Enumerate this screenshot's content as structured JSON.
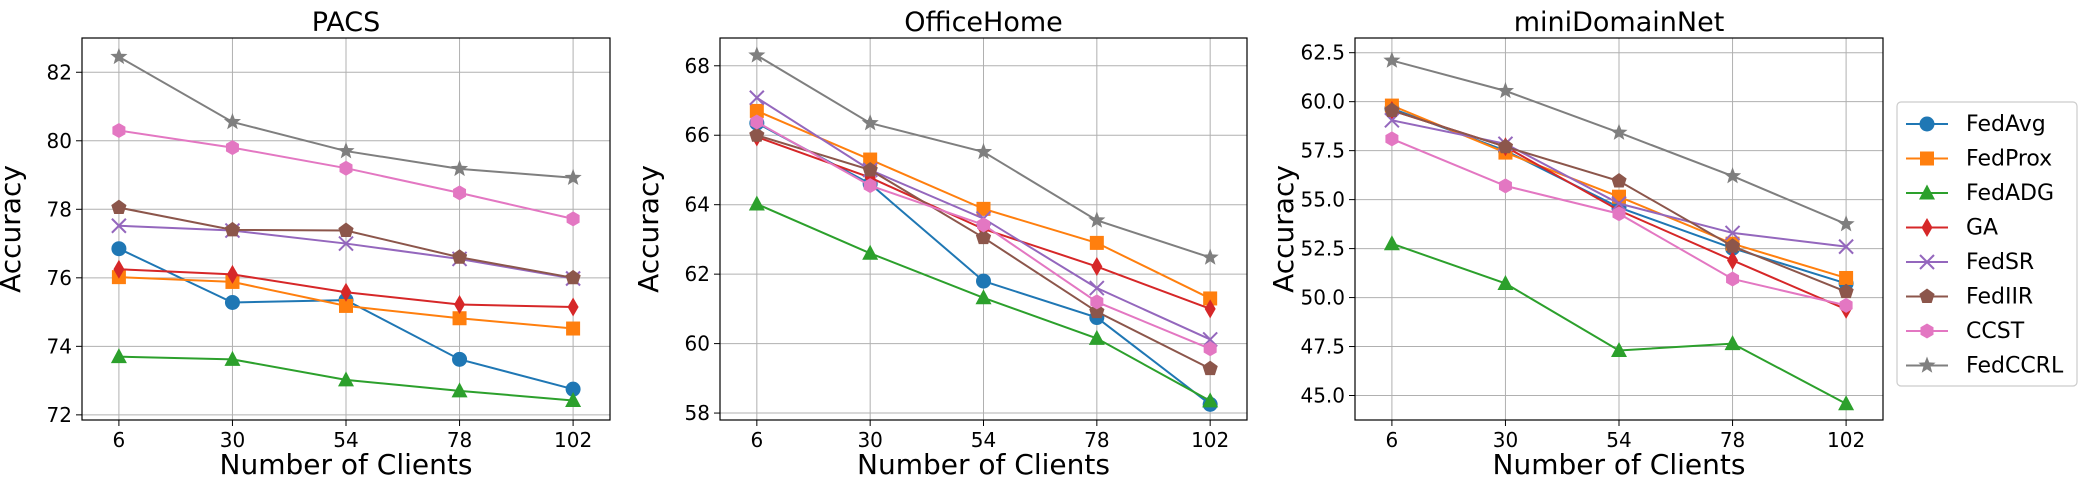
{
  "legend": {
    "placement": "right",
    "entries": [
      {
        "name": "FedAvg",
        "color": "#1f77b4",
        "marker": "circle"
      },
      {
        "name": "FedProx",
        "color": "#ff7f0e",
        "marker": "square"
      },
      {
        "name": "FedADG",
        "color": "#2ca02c",
        "marker": "triangle-up"
      },
      {
        "name": "GA",
        "color": "#d62728",
        "marker": "thin-diamond"
      },
      {
        "name": "FedSR",
        "color": "#9467bd",
        "marker": "x"
      },
      {
        "name": "FedIIR",
        "color": "#8c564b",
        "marker": "pentagon"
      },
      {
        "name": "CCST",
        "color": "#e377c2",
        "marker": "hexagon"
      },
      {
        "name": "FedCCRL",
        "color": "#7f7f7f",
        "marker": "star"
      }
    ]
  },
  "chart_data": [
    {
      "type": "line",
      "title": "PACS",
      "xlabel": "Number of Clients",
      "ylabel": "Accuracy",
      "grid": true,
      "x": [
        6,
        30,
        54,
        78,
        102
      ],
      "xticks": [
        "6",
        "30",
        "54",
        "78",
        "102"
      ],
      "xlim": [
        -1.8,
        109.8
      ],
      "ylim": [
        71.85,
        83.0
      ],
      "yticks": [
        "72",
        "74",
        "76",
        "78",
        "80",
        "82"
      ],
      "series": [
        {
          "name": "FedAvg",
          "values": [
            76.85,
            75.28,
            75.35,
            73.62,
            72.75
          ]
        },
        {
          "name": "FedProx",
          "values": [
            76.02,
            75.88,
            75.18,
            74.82,
            74.52
          ]
        },
        {
          "name": "FedADG",
          "values": [
            73.7,
            73.62,
            73.02,
            72.7,
            72.42
          ]
        },
        {
          "name": "GA",
          "values": [
            76.25,
            76.1,
            75.58,
            75.22,
            75.15
          ]
        },
        {
          "name": "FedSR",
          "values": [
            77.52,
            77.38,
            77.0,
            76.55,
            75.98
          ]
        },
        {
          "name": "FedIIR",
          "values": [
            78.05,
            77.4,
            77.38,
            76.6,
            76.0
          ]
        },
        {
          "name": "CCST",
          "values": [
            80.3,
            79.8,
            79.2,
            78.48,
            77.72
          ]
        },
        {
          "name": "FedCCRL",
          "values": [
            82.45,
            80.55,
            79.7,
            79.18,
            78.92
          ]
        }
      ]
    },
    {
      "type": "line",
      "title": "OfficeHome",
      "xlabel": "Number of Clients",
      "ylabel": "Accuracy",
      "grid": true,
      "x": [
        6,
        30,
        54,
        78,
        102
      ],
      "xticks": [
        "6",
        "30",
        "54",
        "78",
        "102"
      ],
      "xlim": [
        -1.8,
        109.8
      ],
      "ylim": [
        57.8,
        68.8
      ],
      "yticks": [
        "58",
        "60",
        "62",
        "64",
        "66",
        "68"
      ],
      "series": [
        {
          "name": "FedAvg",
          "values": [
            66.35,
            64.6,
            61.8,
            60.75,
            58.25
          ]
        },
        {
          "name": "FedProx",
          "values": [
            66.7,
            65.3,
            63.88,
            62.9,
            61.3
          ]
        },
        {
          "name": "FedADG",
          "values": [
            64.02,
            62.6,
            61.32,
            60.15,
            58.35
          ]
        },
        {
          "name": "GA",
          "values": [
            65.95,
            64.78,
            63.3,
            62.22,
            61.0
          ]
        },
        {
          "name": "FedSR",
          "values": [
            67.08,
            65.0,
            63.6,
            61.6,
            60.12
          ]
        },
        {
          "name": "FedIIR",
          "values": [
            66.0,
            65.0,
            63.05,
            60.92,
            59.28
          ]
        },
        {
          "name": "CCST",
          "values": [
            66.38,
            64.55,
            63.42,
            61.2,
            59.85
          ]
        },
        {
          "name": "FedCCRL",
          "values": [
            68.3,
            66.35,
            65.52,
            63.55,
            62.48
          ]
        }
      ]
    },
    {
      "type": "line",
      "title": "miniDomainNet",
      "xlabel": "Number of Clients",
      "ylabel": "Accuracy",
      "grid": true,
      "x": [
        6,
        30,
        54,
        78,
        102
      ],
      "xticks": [
        "6",
        "30",
        "54",
        "78",
        "102"
      ],
      "xlim": [
        -1.8,
        109.8
      ],
      "ylim": [
        43.75,
        63.25
      ],
      "yticks": [
        "45.0",
        "47.5",
        "50.0",
        "52.5",
        "55.0",
        "57.5",
        "60.0",
        "62.5"
      ],
      "series": [
        {
          "name": "FedAvg",
          "values": [
            59.65,
            57.5,
            54.6,
            52.52,
            50.72
          ]
        },
        {
          "name": "FedProx",
          "values": [
            59.8,
            57.4,
            55.15,
            52.75,
            51.0
          ]
        },
        {
          "name": "FedADG",
          "values": [
            52.75,
            50.72,
            47.3,
            47.65,
            44.58
          ]
        },
        {
          "name": "GA",
          "values": [
            59.55,
            57.7,
            54.45,
            51.9,
            49.4
          ]
        },
        {
          "name": "FedSR",
          "values": [
            59.05,
            57.85,
            54.8,
            53.3,
            52.6
          ]
        },
        {
          "name": "FedIIR",
          "values": [
            59.55,
            57.7,
            55.95,
            52.62,
            50.3
          ]
        },
        {
          "name": "CCST",
          "values": [
            58.1,
            55.7,
            54.28,
            50.95,
            49.6
          ]
        },
        {
          "name": "FedCCRL",
          "values": [
            62.1,
            60.55,
            58.42,
            56.2,
            53.75
          ]
        }
      ]
    }
  ]
}
